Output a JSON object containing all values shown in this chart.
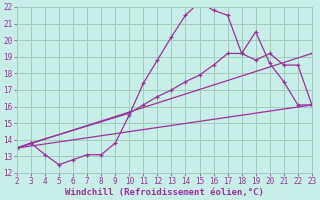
{
  "xlabel": "Windchill (Refroidissement éolien,°C)",
  "bg_color": "#c8eee8",
  "grid_color": "#a0ccbb",
  "line_color": "#993399",
  "xmin": 2,
  "xmax": 23,
  "ymin": 12,
  "ymax": 22,
  "series1_x": [
    2,
    3,
    4,
    5,
    6,
    7,
    8,
    9,
    10,
    11,
    12,
    13,
    14,
    15,
    16,
    17,
    18,
    19,
    20,
    21,
    22,
    23
  ],
  "series1_y": [
    13.5,
    13.8,
    13.1,
    12.5,
    12.8,
    13.1,
    13.1,
    13.8,
    15.5,
    17.4,
    18.8,
    20.2,
    21.5,
    22.3,
    21.8,
    21.5,
    19.2,
    20.5,
    18.6,
    17.5,
    16.1,
    16.1
  ],
  "series2_x": [
    2,
    3,
    10,
    11,
    12,
    13,
    14,
    15,
    16,
    17,
    18,
    19,
    20,
    21,
    22,
    23
  ],
  "series2_y": [
    13.5,
    13.8,
    15.6,
    16.1,
    16.6,
    17.0,
    17.5,
    17.9,
    18.5,
    19.2,
    19.2,
    18.8,
    19.2,
    18.5,
    18.5,
    16.1
  ],
  "series3_x": [
    2,
    23
  ],
  "series3_y": [
    13.5,
    19.2
  ],
  "series4_x": [
    2,
    23
  ],
  "series4_y": [
    13.5,
    16.1
  ],
  "font_color": "#993399",
  "tick_fontsize": 5.5,
  "label_fontsize": 6.5
}
